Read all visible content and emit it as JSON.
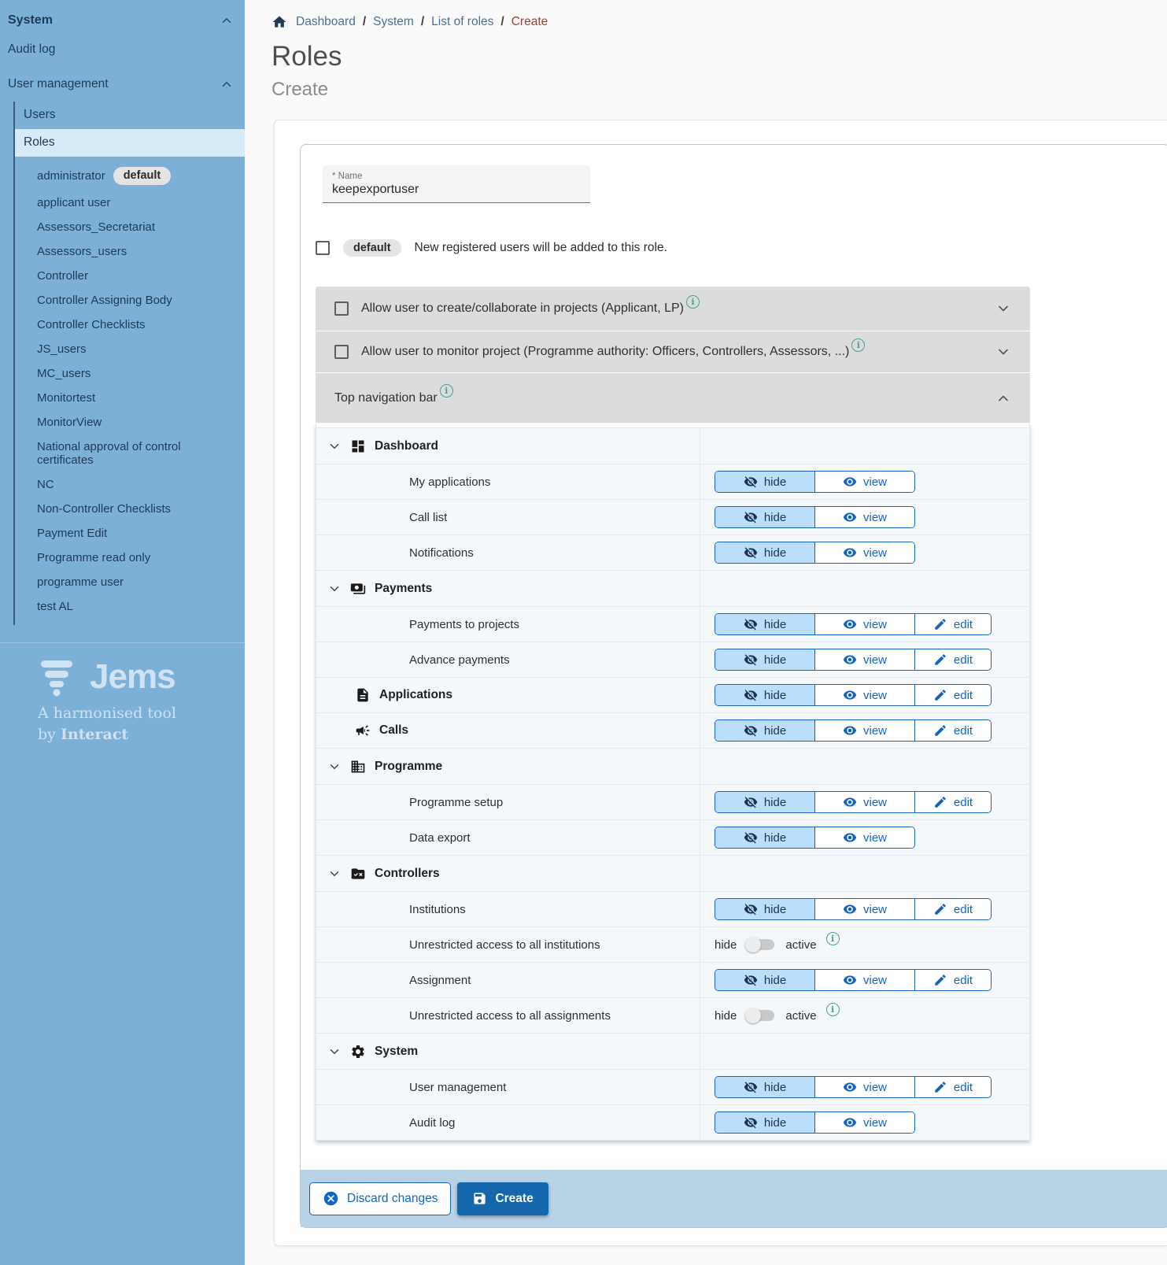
{
  "colors": {
    "accent_blue": "#1565c0",
    "sidebar_bg": "#7db0d7",
    "sidebar_active_bg": "#d6eaf8",
    "hide_selected_bg": "#bbdefb",
    "footer_bar_bg": "#b8d3e6",
    "create_button_bg": "#1467ad",
    "info_icon": "#4aa094",
    "breadcrumb_current": "#a2402a",
    "accordion_bg": "#dcdcdc",
    "row_bg": "#f4f8fb"
  },
  "sidebar": {
    "section_title": "System",
    "audit_log": "Audit log",
    "user_management": "User management",
    "users": "Users",
    "roles": "Roles",
    "role_items": [
      {
        "label": "administrator",
        "badge": "default"
      },
      {
        "label": "applicant user"
      },
      {
        "label": "Assessors_Secretariat"
      },
      {
        "label": "Assessors_users"
      },
      {
        "label": "Controller"
      },
      {
        "label": "Controller Assigning Body"
      },
      {
        "label": "Controller Checklists"
      },
      {
        "label": "JS_users"
      },
      {
        "label": "MC_users"
      },
      {
        "label": "Monitortest"
      },
      {
        "label": "MonitorView"
      },
      {
        "label": "National approval of control certificates"
      },
      {
        "label": "NC"
      },
      {
        "label": "Non-Controller Checklists"
      },
      {
        "label": "Payment Edit"
      },
      {
        "label": "Programme read only"
      },
      {
        "label": "programme user"
      },
      {
        "label": "test AL"
      }
    ],
    "logo": {
      "name": "Jems",
      "tagline": "A harmonised tool",
      "by_prefix": "by ",
      "by_brand": "Interact"
    }
  },
  "breadcrumb": {
    "items": [
      "Dashboard",
      "System",
      "List of roles"
    ],
    "current": "Create"
  },
  "header": {
    "title": "Roles",
    "subtitle": "Create"
  },
  "form": {
    "name_label": "* Name",
    "name_value": "keepexportuser",
    "default_badge": "default",
    "default_text": "New registered users will be added to this role.",
    "panels": [
      {
        "label": "Allow user to create/collaborate in projects (Applicant, LP)",
        "checkbox": true,
        "expanded": false
      },
      {
        "label": "Allow user to monitor project (Programme authority: Officers, Controllers, Assessors, ...)",
        "checkbox": true,
        "expanded": false
      },
      {
        "label": "Top navigation bar",
        "checkbox": false,
        "expanded": true
      }
    ]
  },
  "permissions": {
    "control_labels": {
      "hide": "hide",
      "view": "view",
      "edit": "edit",
      "toggle_off": "hide",
      "toggle_on": "active"
    },
    "rows": [
      {
        "type": "section",
        "icon": "dashboard-icon",
        "label": "Dashboard"
      },
      {
        "type": "item",
        "label": "My applications",
        "controls": [
          "hide",
          "view"
        ]
      },
      {
        "type": "item",
        "label": "Call list",
        "controls": [
          "hide",
          "view"
        ]
      },
      {
        "type": "item",
        "label": "Notifications",
        "controls": [
          "hide",
          "view"
        ]
      },
      {
        "type": "section",
        "icon": "payments-icon",
        "label": "Payments"
      },
      {
        "type": "item",
        "label": "Payments to projects",
        "controls": [
          "hide",
          "view",
          "edit"
        ]
      },
      {
        "type": "item",
        "label": "Advance payments",
        "controls": [
          "hide",
          "view",
          "edit"
        ]
      },
      {
        "type": "section-item",
        "icon": "applications-icon",
        "label": "Applications",
        "controls": [
          "hide",
          "view",
          "edit"
        ]
      },
      {
        "type": "section-item",
        "icon": "calls-icon",
        "label": "Calls",
        "controls": [
          "hide",
          "view",
          "edit"
        ]
      },
      {
        "type": "section",
        "icon": "programme-icon",
        "label": "Programme"
      },
      {
        "type": "item",
        "label": "Programme setup",
        "controls": [
          "hide",
          "view",
          "edit"
        ]
      },
      {
        "type": "item",
        "label": "Data export",
        "controls": [
          "hide",
          "view"
        ]
      },
      {
        "type": "section",
        "icon": "controllers-icon",
        "label": "Controllers"
      },
      {
        "type": "item",
        "label": "Institutions",
        "controls": [
          "hide",
          "view",
          "edit"
        ]
      },
      {
        "type": "item",
        "label": "Unrestricted access to all institutions",
        "controls": "toggle"
      },
      {
        "type": "item",
        "label": "Assignment",
        "controls": [
          "hide",
          "view",
          "edit"
        ]
      },
      {
        "type": "item",
        "label": "Unrestricted access to all assignments",
        "controls": "toggle"
      },
      {
        "type": "section",
        "icon": "system-icon",
        "label": "System"
      },
      {
        "type": "item",
        "label": "User management",
        "controls": [
          "hide",
          "view",
          "edit"
        ]
      },
      {
        "type": "item",
        "label": "Audit log",
        "controls": [
          "hide",
          "view"
        ]
      }
    ]
  },
  "footer": {
    "discard_label": "Discard changes",
    "create_label": "Create"
  }
}
